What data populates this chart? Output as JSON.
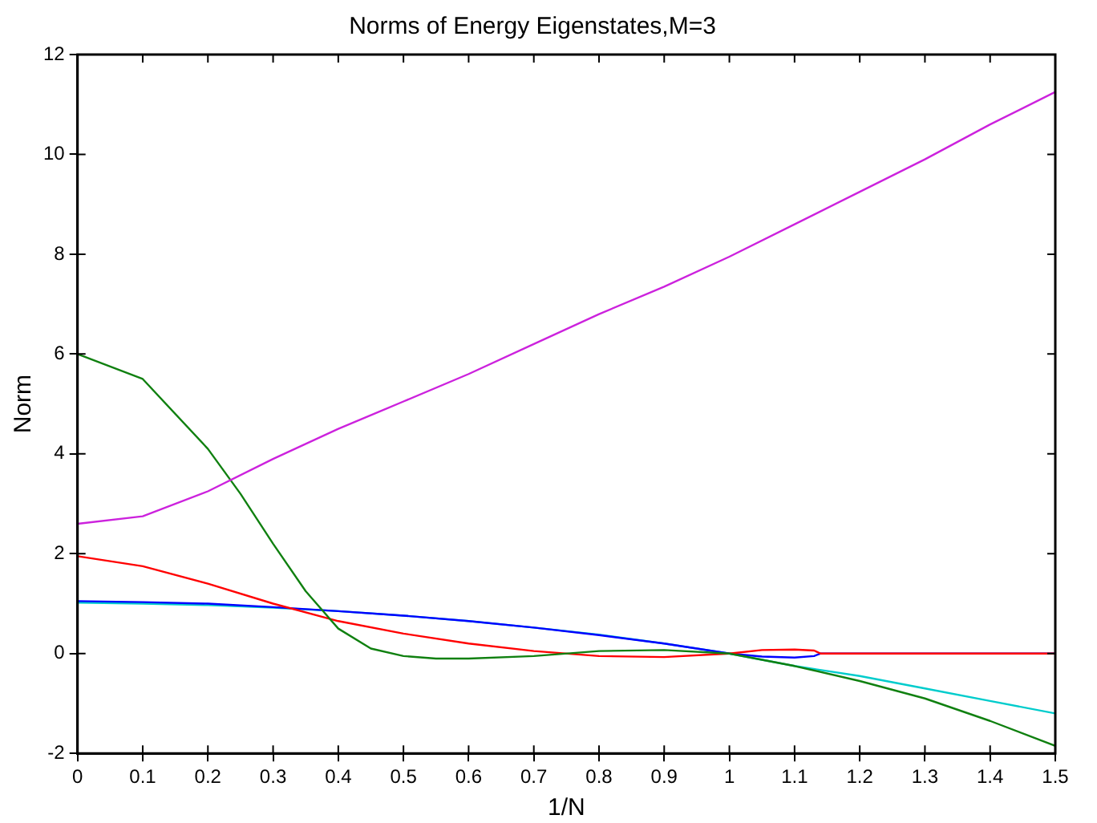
{
  "chart_data": {
    "type": "line",
    "title": "Norms of Energy Eigenstates,M=3",
    "xlabel": "1/N",
    "ylabel": "Norm",
    "xlim": [
      0,
      1.5
    ],
    "ylim": [
      -2,
      12
    ],
    "xticks": [
      0,
      0.1,
      0.2,
      0.3,
      0.4,
      0.5,
      0.6,
      0.7,
      0.8,
      0.9,
      1,
      1.1,
      1.2,
      1.3,
      1.4,
      1.5
    ],
    "yticks": [
      -2,
      0,
      2,
      4,
      6,
      8,
      10,
      12
    ],
    "grid": false,
    "legend": false,
    "marker": "none",
    "line_style": "solid",
    "series": [
      {
        "color": "#cc22dd",
        "x": [
          0,
          0.1,
          0.2,
          0.3,
          0.4,
          0.5,
          0.6,
          0.7,
          0.8,
          0.9,
          1,
          1.1,
          1.2,
          1.3,
          1.4,
          1.5
        ],
        "values": [
          2.6,
          2.75,
          3.25,
          3.9,
          4.5,
          5.05,
          5.6,
          6.2,
          6.8,
          7.35,
          7.95,
          8.6,
          9.25,
          9.9,
          10.6,
          11.25
        ]
      },
      {
        "color": "#108010",
        "x": [
          0,
          0.1,
          0.2,
          0.25,
          0.3,
          0.35,
          0.4,
          0.45,
          0.5,
          0.55,
          0.6,
          0.7,
          0.8,
          0.9,
          1,
          1.1,
          1.2,
          1.3,
          1.4,
          1.5
        ],
        "values": [
          6,
          5.5,
          4.1,
          3.2,
          2.2,
          1.25,
          0.5,
          0.1,
          -0.05,
          -0.1,
          -0.1,
          -0.05,
          0.05,
          0.07,
          0,
          -0.25,
          -0.55,
          -0.9,
          -1.35,
          -1.85
        ]
      },
      {
        "color": "#ff0000",
        "x": [
          0,
          0.1,
          0.2,
          0.3,
          0.4,
          0.5,
          0.6,
          0.7,
          0.8,
          0.9,
          1,
          1.05,
          1.1,
          1.13,
          1.14,
          1.5
        ],
        "values": [
          1.95,
          1.75,
          1.4,
          1,
          0.65,
          0.4,
          0.2,
          0.05,
          -0.05,
          -0.07,
          0,
          0.07,
          0.08,
          0.06,
          0,
          0
        ]
      },
      {
        "color": "#0000ff",
        "x": [
          0,
          0.1,
          0.2,
          0.3,
          0.4,
          0.5,
          0.6,
          0.7,
          0.8,
          0.9,
          1,
          1.05,
          1.1,
          1.13,
          1.14,
          1.5
        ],
        "values": [
          1.05,
          1.03,
          1,
          0.93,
          0.85,
          0.76,
          0.65,
          0.52,
          0.37,
          0.2,
          0,
          -0.06,
          -0.08,
          -0.05,
          0,
          0
        ]
      },
      {
        "color": "#00cccc",
        "x": [
          0,
          0.1,
          0.2,
          0.3,
          0.4,
          0.5,
          0.6,
          0.7,
          0.8,
          0.9,
          1,
          1.1,
          1.2,
          1.3,
          1.4,
          1.5
        ],
        "values": [
          1.02,
          1,
          0.97,
          0.92,
          0.85,
          0.76,
          0.65,
          0.52,
          0.38,
          0.2,
          0,
          -0.25,
          -0.45,
          -0.7,
          -0.95,
          -1.2
        ]
      }
    ]
  }
}
